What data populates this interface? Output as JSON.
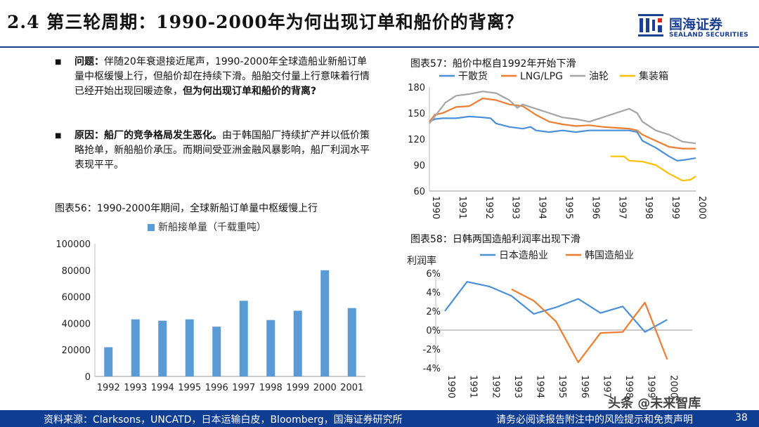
{
  "header": {
    "title": "2.4 第三轮周期：1990-2000年为何出现订单和船价的背离？",
    "logo_cn": "国海证券",
    "logo_en": "SEALAND SECURITIES",
    "brand_color": "#1a3f93"
  },
  "bullets": [
    {
      "lead": "问题：",
      "text": "伴随20年衰退接近尾声，1990-2000年全球造船业新船订单量中枢缓慢上行，但船价却在持续下滑。船舶交付量上行意味着行情已经开始出现回暖迹象，",
      "tail": "但为何出现订单和船价的背离?"
    },
    {
      "lead": "原因：船厂的竞争格局发生恶化。",
      "text": "由于韩国船厂持续扩产并以低价策略抢单，新船船价承压。而期间受亚洲金融风暴影响，船厂利润水平表现平平。",
      "tail": ""
    }
  ],
  "footer": {
    "source": "资料来源：Clarksons，UNCATD，日本运输白皮，Bloomberg，国海证券研究所",
    "disclaimer": "请务必阅读报告附注中的风险提示和免责声明",
    "page": "38",
    "watermark": "头条 @未来智库"
  },
  "chart_data": [
    {
      "type": "bar",
      "title": "图表56：1990-2000年期间，全球新船订单量中枢缓慢上行",
      "categories": [
        "1992",
        "1993",
        "1994",
        "1995",
        "1996",
        "1997",
        "1998",
        "1999",
        "2000",
        "2001"
      ],
      "series": [
        {
          "name": "新船接单量（千载重吨）",
          "values": [
            22000,
            43000,
            42000,
            43000,
            37500,
            57000,
            42500,
            49500,
            80000,
            51500
          ],
          "color": "#5b9bd5"
        }
      ],
      "ylim": [
        0,
        100000
      ],
      "yticks": [
        "0",
        "20000",
        "40000",
        "60000",
        "80000",
        "100000"
      ],
      "grid": false,
      "legend": "top"
    },
    {
      "type": "line",
      "title": "图表57：船价中枢自1992年开始下滑",
      "x_range": [
        1990,
        2000
      ],
      "xticks": [
        "1990",
        "1991",
        "1992",
        "1993",
        "1994",
        "1995",
        "1996",
        "1997",
        "1998",
        "1999",
        "2000"
      ],
      "ylim": [
        60,
        180
      ],
      "yticks": [
        "60",
        "90",
        "120",
        "150",
        "180"
      ],
      "grid": false,
      "legend": "top",
      "series": [
        {
          "name": "干散货",
          "color": "#4a90d9",
          "points": [
            [
              1990,
              140
            ],
            [
              1990.2,
              143
            ],
            [
              1990.5,
              144
            ],
            [
              1991,
              144
            ],
            [
              1991.5,
              146
            ],
            [
              1992,
              145
            ],
            [
              1992.3,
              144
            ],
            [
              1992.5,
              138
            ],
            [
              1993,
              134
            ],
            [
              1993.5,
              132
            ],
            [
              1993.8,
              134
            ],
            [
              1994,
              130
            ],
            [
              1994.5,
              128
            ],
            [
              1995,
              130
            ],
            [
              1995.5,
              128
            ],
            [
              1996,
              130
            ],
            [
              1996.5,
              130
            ],
            [
              1997,
              130
            ],
            [
              1997.5,
              130
            ],
            [
              1997.8,
              128
            ],
            [
              1998,
              118
            ],
            [
              1998.5,
              110
            ],
            [
              1999,
              100
            ],
            [
              1999.3,
              95
            ],
            [
              1999.6,
              96
            ],
            [
              2000,
              98
            ]
          ]
        },
        {
          "name": "LNG/LPG",
          "color": "#ed7d31",
          "points": [
            [
              1990,
              140
            ],
            [
              1990.2,
              148
            ],
            [
              1990.5,
              150
            ],
            [
              1991,
              157
            ],
            [
              1991.5,
              158
            ],
            [
              1992,
              167
            ],
            [
              1992.5,
              165
            ],
            [
              1993,
              160
            ],
            [
              1993.5,
              158
            ],
            [
              1994,
              148
            ],
            [
              1994.5,
              140
            ],
            [
              1995,
              137
            ],
            [
              1995.5,
              135
            ],
            [
              1996,
              136
            ],
            [
              1996.5,
              134
            ],
            [
              1997,
              133
            ],
            [
              1997.5,
              132
            ],
            [
              1997.8,
              130
            ],
            [
              1998,
              125
            ],
            [
              1998.5,
              118
            ],
            [
              1999,
              111
            ],
            [
              1999.5,
              109
            ],
            [
              2000,
              109
            ]
          ]
        },
        {
          "name": "油轮",
          "color": "#a5a5a5",
          "points": [
            [
              1990,
              138
            ],
            [
              1990.3,
              150
            ],
            [
              1990.6,
              162
            ],
            [
              1991,
              170
            ],
            [
              1991.5,
              172
            ],
            [
              1992,
              175
            ],
            [
              1992.5,
              173
            ],
            [
              1993,
              165
            ],
            [
              1993.3,
              156
            ],
            [
              1993.5,
              160
            ],
            [
              1994,
              155
            ],
            [
              1994.5,
              150
            ],
            [
              1995,
              145
            ],
            [
              1995.5,
              143
            ],
            [
              1996,
              140
            ],
            [
              1996.5,
              145
            ],
            [
              1997,
              150
            ],
            [
              1997.5,
              155
            ],
            [
              1997.8,
              150
            ],
            [
              1998,
              140
            ],
            [
              1998.5,
              130
            ],
            [
              1999,
              125
            ],
            [
              1999.5,
              117
            ],
            [
              2000,
              115
            ]
          ]
        },
        {
          "name": "集装箱",
          "color": "#ffc000",
          "points": [
            [
              1996.8,
              100
            ],
            [
              1997.3,
              100
            ],
            [
              1997.5,
              95
            ],
            [
              1998,
              94
            ],
            [
              1998.5,
              90
            ],
            [
              1999,
              80
            ],
            [
              1999.5,
              72
            ],
            [
              1999.8,
              73
            ],
            [
              2000,
              77
            ]
          ]
        }
      ]
    },
    {
      "type": "line",
      "title": "图表58：日韩两国造船利润率出现下滑",
      "ylabel": "利润率",
      "x_range": [
        1990,
        2001
      ],
      "xticks": [
        "1990",
        "1991",
        "1992",
        "1993",
        "1994",
        "1995",
        "1996",
        "1997",
        "1998",
        "1999",
        "2000"
      ],
      "ylim": [
        -4,
        6
      ],
      "yticks": [
        "-4%",
        "-2%",
        "0%",
        "2%",
        "4%",
        "6%"
      ],
      "grid": false,
      "legend": "top",
      "series": [
        {
          "name": "日本造船业",
          "color": "#4a90d9",
          "points": [
            [
              1990,
              2
            ],
            [
              1991,
              5.1
            ],
            [
              1992,
              4.6
            ],
            [
              1993,
              3.6
            ],
            [
              1994,
              1.7
            ],
            [
              1995,
              2.4
            ],
            [
              1996,
              3.3
            ],
            [
              1997,
              1.8
            ],
            [
              1998,
              2.5
            ],
            [
              1999,
              -0.2
            ],
            [
              2000,
              1.1
            ]
          ]
        },
        {
          "name": "韩国造船业",
          "color": "#ed7d31",
          "points": [
            [
              1993,
              4.3
            ],
            [
              1994,
              3.1
            ],
            [
              1995,
              0.9
            ],
            [
              1996,
              -3.4
            ],
            [
              1997,
              -0.3
            ],
            [
              1998,
              -0.2
            ],
            [
              1999,
              2.9
            ],
            [
              2000,
              -3.1
            ]
          ]
        }
      ]
    }
  ]
}
